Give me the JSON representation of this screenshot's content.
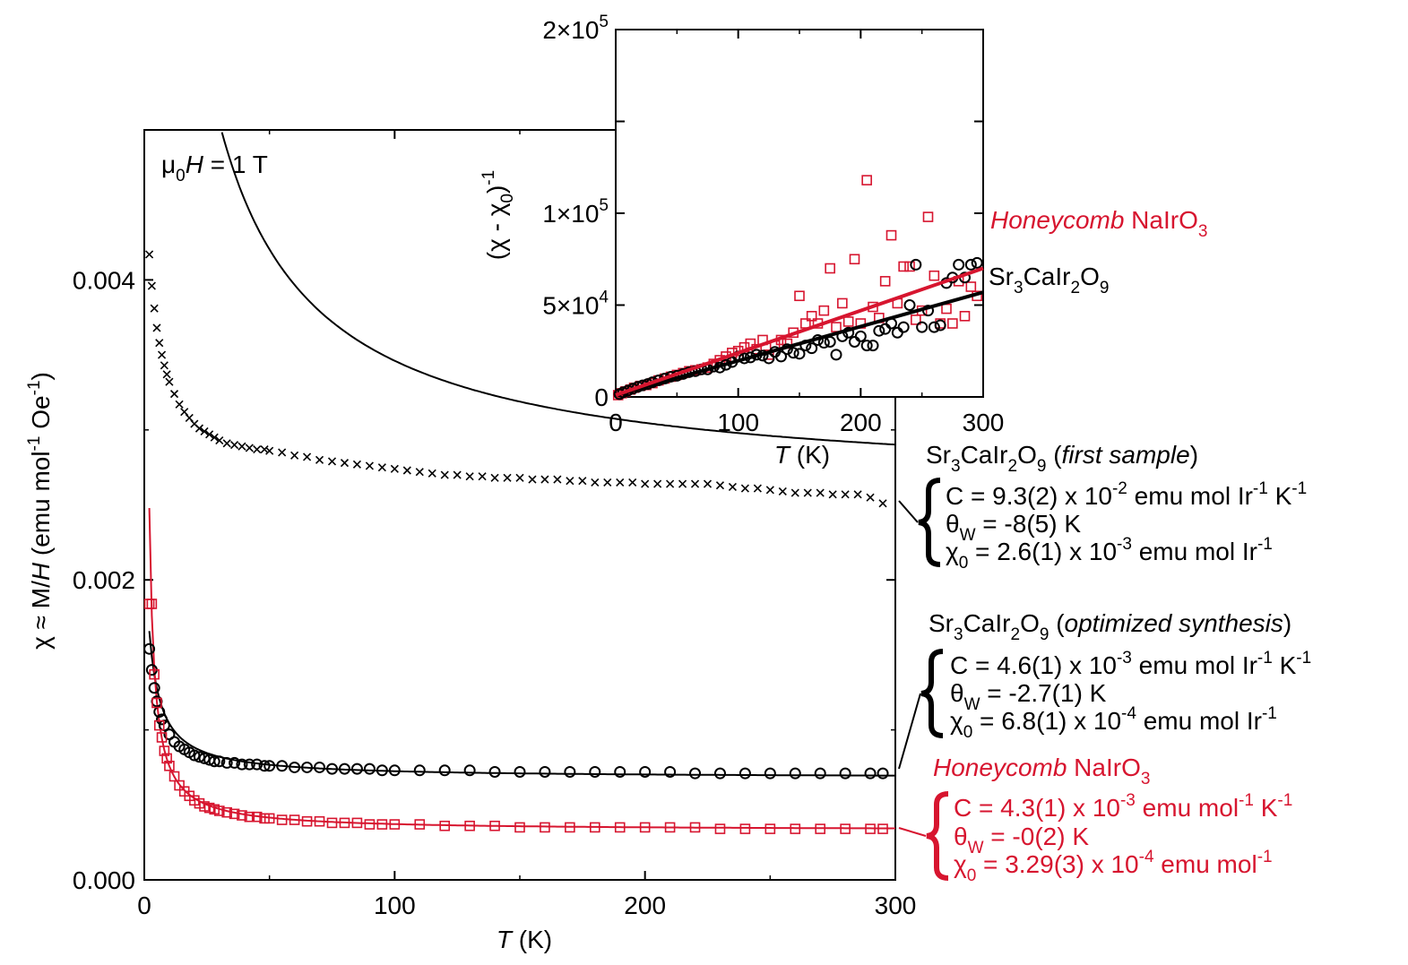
{
  "colors": {
    "black": "#000000",
    "red": "#d7152f"
  },
  "chart_data": [
    {
      "id": "main",
      "type": "scatter",
      "field_label": {
        "prefix": "μ",
        "sub": "0",
        "var": "H",
        "rest": " = 1 T"
      },
      "xlabel": {
        "var": "T",
        "unit": " (K)"
      },
      "ylabel": {
        "a": "χ ≈ M/",
        "var": "H",
        "b": " (emu mol",
        "sup1": "-1",
        "c": " Oe",
        "sup2": "-1",
        "d": ")"
      },
      "xlim": [
        0,
        300
      ],
      "ylim": [
        0,
        0.005
      ],
      "xticks": [
        0,
        100,
        200,
        300
      ],
      "xtick_labels": [
        "0",
        "100",
        "200",
        "300"
      ],
      "yticks": [
        0,
        0.002,
        0.004
      ],
      "ytick_labels": [
        "0.000",
        "0.002",
        "0.004"
      ],
      "series": [
        {
          "name": "Sr3CaIr2O9 (first sample)",
          "marker": "x",
          "color": "#000000",
          "fit": {
            "C": 0.093,
            "theta": -8,
            "chi0": 0.0026
          },
          "x": [
            2,
            3,
            4,
            5,
            6,
            7,
            8,
            9,
            10,
            12,
            14,
            16,
            18,
            20,
            22,
            24,
            26,
            28,
            30,
            33,
            36,
            39,
            42,
            45,
            48,
            50,
            55,
            60,
            65,
            70,
            75,
            80,
            85,
            90,
            95,
            100,
            105,
            110,
            115,
            120,
            125,
            130,
            135,
            140,
            145,
            150,
            155,
            160,
            165,
            170,
            175,
            180,
            185,
            190,
            195,
            200,
            205,
            210,
            215,
            220,
            225,
            230,
            235,
            240,
            245,
            250,
            255,
            260,
            265,
            270,
            275,
            280,
            285,
            290,
            295
          ],
          "y": [
            0.00417,
            0.00396,
            0.00381,
            0.00368,
            0.00358,
            0.0035,
            0.00343,
            0.00337,
            0.00332,
            0.00324,
            0.00317,
            0.00312,
            0.00308,
            0.00304,
            0.00301,
            0.00299,
            0.00297,
            0.00295,
            0.00293,
            0.00291,
            0.0029,
            0.00289,
            0.00288,
            0.00287,
            0.00287,
            0.00286,
            0.00285,
            0.00283,
            0.00282,
            0.0028,
            0.00279,
            0.00278,
            0.00277,
            0.00276,
            0.00275,
            0.00274,
            0.00273,
            0.00272,
            0.00271,
            0.0027,
            0.0027,
            0.00269,
            0.00269,
            0.00268,
            0.00268,
            0.00268,
            0.00267,
            0.00267,
            0.00267,
            0.00266,
            0.00266,
            0.00265,
            0.00265,
            0.00265,
            0.00265,
            0.00264,
            0.00264,
            0.00264,
            0.00264,
            0.00264,
            0.00264,
            0.00263,
            0.00262,
            0.00261,
            0.00261,
            0.0026,
            0.00259,
            0.00258,
            0.00258,
            0.00258,
            0.00257,
            0.00257,
            0.00257,
            0.00255,
            0.00251
          ]
        },
        {
          "name": "Sr3CaIr2O9 (optimized synthesis)",
          "marker": "circle",
          "color": "#000000",
          "fit": {
            "C": 0.0046,
            "theta": -2.7,
            "chi0": 0.00068
          },
          "x": [
            2,
            3,
            4,
            5,
            6,
            7,
            8,
            10,
            12,
            14,
            16,
            18,
            20,
            22,
            24,
            26,
            28,
            30,
            33,
            36,
            39,
            42,
            45,
            48,
            50,
            55,
            60,
            65,
            70,
            75,
            80,
            85,
            90,
            95,
            100,
            110,
            120,
            130,
            140,
            150,
            160,
            170,
            180,
            190,
            200,
            210,
            220,
            230,
            240,
            250,
            260,
            270,
            280,
            290,
            295
          ],
          "y": [
            0.00154,
            0.0014,
            0.00128,
            0.00119,
            0.00112,
            0.00107,
            0.00103,
            0.00097,
            0.00092,
            0.00089,
            0.00087,
            0.00085,
            0.00083,
            0.00082,
            0.00081,
            0.0008,
            0.00079,
            0.00079,
            0.00078,
            0.00078,
            0.00077,
            0.00077,
            0.00077,
            0.00076,
            0.00076,
            0.00076,
            0.00075,
            0.00075,
            0.00075,
            0.00074,
            0.00074,
            0.00074,
            0.00074,
            0.00073,
            0.00073,
            0.00073,
            0.00073,
            0.00073,
            0.00072,
            0.00072,
            0.00072,
            0.00072,
            0.00072,
            0.00072,
            0.00072,
            0.00072,
            0.00071,
            0.00071,
            0.00071,
            0.00071,
            0.00071,
            0.00071,
            0.00071,
            0.00071,
            0.00071
          ]
        },
        {
          "name": "Honeycomb NaIrO3",
          "marker": "square",
          "color": "#d7152f",
          "fit": {
            "C": 0.0043,
            "theta": 0,
            "chi0": 0.000329
          },
          "x": [
            2,
            3,
            4,
            5,
            6,
            7,
            8,
            9,
            10,
            12,
            14,
            16,
            18,
            20,
            22,
            24,
            26,
            28,
            30,
            33,
            36,
            39,
            42,
            45,
            48,
            50,
            55,
            60,
            65,
            70,
            75,
            80,
            85,
            90,
            95,
            100,
            110,
            120,
            130,
            140,
            150,
            160,
            170,
            180,
            190,
            200,
            210,
            220,
            230,
            240,
            250,
            260,
            270,
            280,
            290,
            295
          ],
          "y": [
            0.00184,
            0.00184,
            0.00137,
            0.00118,
            0.00103,
            0.00095,
            0.00086,
            0.00081,
            0.00076,
            0.00069,
            0.00063,
            0.00059,
            0.00056,
            0.00053,
            0.00051,
            0.00049,
            0.00048,
            0.00047,
            0.00046,
            0.00045,
            0.00044,
            0.00043,
            0.00042,
            0.00042,
            0.00041,
            0.00041,
            0.0004,
            0.0004,
            0.00039,
            0.00039,
            0.00038,
            0.00038,
            0.00038,
            0.00037,
            0.00037,
            0.00037,
            0.00037,
            0.00036,
            0.00036,
            0.00036,
            0.00035,
            0.00035,
            0.00035,
            0.00035,
            0.00035,
            0.00035,
            0.00035,
            0.00035,
            0.00034,
            0.00034,
            0.00034,
            0.00034,
            0.00034,
            0.00034,
            0.00034,
            0.00034
          ]
        }
      ]
    },
    {
      "id": "inset",
      "type": "scatter",
      "xlabel": {
        "var": "T",
        "unit": " (K)"
      },
      "ylabel": {
        "a": "(χ - χ",
        "sub": "0",
        "b": ")",
        "sup": "-1"
      },
      "xlim": [
        0,
        300
      ],
      "ylim": [
        0,
        200000
      ],
      "xticks": [
        0,
        100,
        200,
        300
      ],
      "xtick_labels": [
        "0",
        "100",
        "200",
        "300"
      ],
      "yticks": [
        0,
        50000,
        100000,
        200000
      ],
      "ytick_labels": [
        {
          "m": "0",
          "e": ""
        },
        {
          "m": "5×10",
          "e": "4"
        },
        {
          "m": "1×10",
          "e": "5"
        },
        {
          "m": "2×10",
          "e": "5"
        }
      ],
      "series": [
        {
          "name": "Sr3CaIr2O9",
          "marker": "circle",
          "color": "#000000",
          "fit_line": {
            "x": [
              0,
              300
            ],
            "y": [
              1000,
              57000
            ]
          },
          "x": [
            3,
            6,
            10,
            14,
            18,
            22,
            26,
            30,
            35,
            40,
            45,
            50,
            55,
            60,
            65,
            70,
            75,
            80,
            85,
            90,
            95,
            100,
            105,
            110,
            115,
            120,
            125,
            130,
            135,
            140,
            145,
            150,
            155,
            160,
            165,
            170,
            175,
            180,
            185,
            190,
            195,
            200,
            205,
            210,
            215,
            220,
            225,
            230,
            235,
            240,
            245,
            250,
            255,
            260,
            265,
            270,
            275,
            280,
            285,
            290,
            295
          ],
          "y": [
            1500,
            2500,
            3500,
            4500,
            5500,
            6300,
            7000,
            8000,
            9000,
            10000,
            11000,
            11500,
            12500,
            13500,
            14000,
            15000,
            15000,
            16500,
            16000,
            17500,
            19000,
            22000,
            21000,
            21500,
            23000,
            22500,
            21000,
            24500,
            22000,
            26000,
            24000,
            23500,
            28000,
            26500,
            31000,
            29500,
            30000,
            23000,
            33000,
            35000,
            30000,
            33000,
            28000,
            28000,
            36000,
            37000,
            40000,
            35000,
            38000,
            50000,
            72000,
            38000,
            47000,
            38000,
            39000,
            62000,
            65000,
            72000,
            65000,
            72000,
            73000
          ]
        },
        {
          "name": "Honeycomb NaIrO3",
          "marker": "square",
          "color": "#d7152f",
          "fit_line": {
            "x": [
              0,
              300
            ],
            "y": [
              1000,
              70000
            ]
          },
          "x": [
            2,
            5,
            8,
            12,
            15,
            20,
            25,
            30,
            35,
            40,
            45,
            50,
            55,
            60,
            65,
            70,
            75,
            80,
            85,
            90,
            95,
            100,
            105,
            110,
            115,
            120,
            125,
            130,
            135,
            140,
            145,
            150,
            155,
            160,
            165,
            170,
            175,
            180,
            185,
            190,
            195,
            200,
            205,
            210,
            215,
            220,
            225,
            230,
            235,
            240,
            245,
            250,
            255,
            260,
            265,
            270,
            275,
            280,
            285,
            290,
            295
          ],
          "y": [
            1000,
            2000,
            3000,
            4000,
            5000,
            6000,
            6500,
            7500,
            9000,
            10000,
            11000,
            12000,
            13000,
            14000,
            14500,
            15000,
            16000,
            18000,
            20000,
            22000,
            24000,
            25000,
            27000,
            29000,
            26000,
            31000,
            23000,
            28000,
            31000,
            29000,
            35000,
            55000,
            40000,
            44000,
            40000,
            47000,
            70000,
            38000,
            51000,
            41000,
            75000,
            40000,
            118000,
            49000,
            43000,
            63000,
            88000,
            51000,
            71000,
            71000,
            42000,
            47000,
            98000,
            66000,
            40000,
            48000,
            40000,
            63000,
            44000,
            60000,
            55000
          ]
        }
      ]
    }
  ],
  "annotations": {
    "inset_labels": {
      "honeycomb": {
        "it": "Honeycomb",
        "rest": " NaIrO",
        "sub": "3"
      },
      "sr": {
        "a": "Sr",
        "s1": "3",
        "b": "CaIr",
        "s2": "2",
        "c": "O",
        "s3": "9"
      }
    },
    "first": {
      "title": {
        "a": "Sr",
        "s1": "3",
        "b": "CaIr",
        "s2": "2",
        "c": "O",
        "s3": "9",
        "d": " (",
        "it": "first sample",
        "e": ")"
      },
      "C": {
        "a": "C = 9.3(2) x 10",
        "sup1": "-2",
        "b": " emu mol Ir",
        "sup2": "-1",
        "c": " K",
        "sup3": "-1"
      },
      "theta": {
        "a": "θ",
        "sub": "W",
        "b": " = -8(5) K"
      },
      "chi0": {
        "a": "χ",
        "sub": "0",
        "b": " = 2.6(1) x 10",
        "sup1": "-3",
        "c": " emu mol Ir",
        "sup2": "-1"
      }
    },
    "optimized": {
      "title": {
        "a": "Sr",
        "s1": "3",
        "b": "CaIr",
        "s2": "2",
        "c": "O",
        "s3": "9",
        "d": " (",
        "it": "optimized synthesis",
        "e": ")"
      },
      "C": {
        "a": "C = 4.6(1) x 10",
        "sup1": "-3",
        "b": " emu mol Ir",
        "sup2": "-1",
        "c": " K",
        "sup3": "-1"
      },
      "theta": {
        "a": "θ",
        "sub": "W",
        "b": " = -2.7(1) K"
      },
      "chi0": {
        "a": "χ",
        "sub": "0",
        "b": " = 6.8(1) x 10",
        "sup1": "-4",
        "c": " emu mol Ir",
        "sup2": "-1"
      }
    },
    "honeycomb": {
      "title": {
        "it": "Honeycomb",
        "rest": " NaIrO",
        "sub": "3"
      },
      "C": {
        "a": "C = 4.3(1) x 10",
        "sup1": "-3",
        "b": " emu mol",
        "sup2": "-1",
        "c": " K",
        "sup3": "-1"
      },
      "theta": {
        "a": "θ",
        "sub": "W",
        "b": " = -0(2) K"
      },
      "chi0": {
        "a": "χ",
        "sub": "0",
        "b": " = 3.29(3) x 10",
        "sup1": "-4",
        "c": " emu mol",
        "sup2": "-1"
      }
    }
  }
}
